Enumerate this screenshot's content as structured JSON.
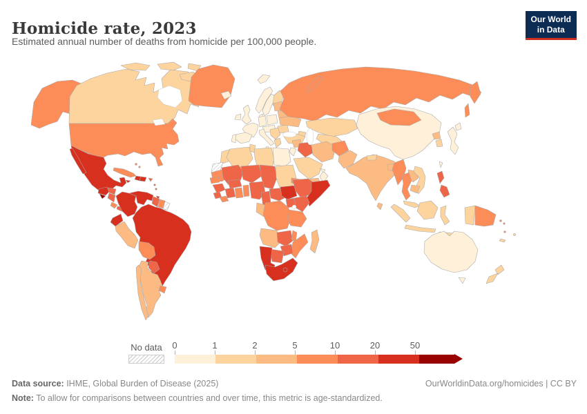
{
  "header": {
    "title": "Homicide rate, 2023",
    "subtitle": "Estimated annual number of deaths from homicide per 100,000 people."
  },
  "logo": {
    "line1": "Our World",
    "line2": "in Data",
    "bg_color": "#0d2c54",
    "accent_color": "#cf2e1c"
  },
  "legend": {
    "no_data_label": "No data",
    "tick_labels": [
      "0",
      "1",
      "2",
      "5",
      "10",
      "20",
      "50"
    ],
    "bins": [
      "0-1",
      "1-2",
      "2-5",
      "5-10",
      "10-20",
      "20-50",
      "50+"
    ],
    "bin_colors": [
      "#fef0d9",
      "#fdd49e",
      "#fdbb84",
      "#fc8d59",
      "#ef6548",
      "#d7301f",
      "#990000"
    ],
    "no_data_pattern": "diagonal-hatch"
  },
  "footer": {
    "source_label": "Data source:",
    "source_text": " IHME, Global Burden of Disease (2025)",
    "attribution": "OurWorldinData.org/homicides | CC BY",
    "note_label": "Note:",
    "note_text": " To allow for comparisons between countries and over time, this metric is age-standardized."
  },
  "chart_data": {
    "type": "choropleth",
    "title": "Homicide rate, 2023",
    "unit": "deaths from homicide per 100,000 people",
    "year": "2023",
    "legend_bins": [
      "0-1",
      "1-2",
      "2-5",
      "5-10",
      "10-20",
      "20-50",
      "50+"
    ],
    "countries": {
      "greenland": {
        "name": "Greenland",
        "bin": "5-10"
      },
      "canada": {
        "name": "Canada",
        "bin": "1-2"
      },
      "usa": {
        "name": "United States",
        "bin": "5-10"
      },
      "mexico": {
        "name": "Mexico",
        "bin": "20-50"
      },
      "guatemala": {
        "name": "Guatemala",
        "bin": "20-50"
      },
      "el_salvador": {
        "name": "El Salvador",
        "bin": "50+"
      },
      "honduras": {
        "name": "Honduras",
        "bin": "10-20"
      },
      "nicaragua": {
        "name": "Nicaragua",
        "bin": "10-20"
      },
      "costa_rica": {
        "name": "Costa Rica",
        "bin": "5-10"
      },
      "panama": {
        "name": "Panama",
        "bin": "10-20"
      },
      "cuba": {
        "name": "Cuba",
        "bin": "5-10"
      },
      "bahamas": {
        "name": "Bahamas",
        "bin": "5-10"
      },
      "jamaica": {
        "name": "Jamaica",
        "bin": "20-50"
      },
      "haiti": {
        "name": "Haiti",
        "bin": "20-50"
      },
      "dominican_republic": {
        "name": "Dominican Republic",
        "bin": "20-50"
      },
      "puerto_rico": {
        "name": "Puerto Rico",
        "bin": "10-20"
      },
      "lesser_antilles": {
        "name": "Lesser Antilles",
        "bin": "10-20"
      },
      "trinidad_and_tobago": {
        "name": "Trinidad and Tobago",
        "bin": "20-50"
      },
      "colombia": {
        "name": "Colombia",
        "bin": "20-50"
      },
      "venezuela": {
        "name": "Venezuela",
        "bin": "20-50"
      },
      "guyana": {
        "name": "Guyana",
        "bin": "10-20"
      },
      "suriname": {
        "name": "Suriname",
        "bin": "5-10"
      },
      "french_guiana": {
        "name": "French Guiana",
        "bin": "no-data"
      },
      "ecuador": {
        "name": "Ecuador",
        "bin": "20-50"
      },
      "peru": {
        "name": "Peru",
        "bin": "2-5"
      },
      "brazil": {
        "name": "Brazil",
        "bin": "20-50"
      },
      "bolivia": {
        "name": "Bolivia",
        "bin": "5-10"
      },
      "paraguay": {
        "name": "Paraguay",
        "bin": "10-20"
      },
      "uruguay": {
        "name": "Uruguay",
        "bin": "5-10"
      },
      "argentina": {
        "name": "Argentina",
        "bin": "2-5"
      },
      "chile": {
        "name": "Chile",
        "bin": "2-5"
      },
      "iceland": {
        "name": "Iceland",
        "bin": "0-1"
      },
      "uk": {
        "name": "United Kingdom",
        "bin": "0-1"
      },
      "ireland": {
        "name": "Ireland",
        "bin": "0-1"
      },
      "norway": {
        "name": "Norway",
        "bin": "0-1"
      },
      "sweden": {
        "name": "Sweden",
        "bin": "0-1"
      },
      "finland": {
        "name": "Finland",
        "bin": "1-2"
      },
      "denmark": {
        "name": "Denmark",
        "bin": "0-1"
      },
      "germany": {
        "name": "Germany",
        "bin": "0-1"
      },
      "france": {
        "name": "France",
        "bin": "0-1"
      },
      "spain": {
        "name": "Spain",
        "bin": "0-1"
      },
      "portugal": {
        "name": "Portugal",
        "bin": "0-1"
      },
      "italy": {
        "name": "Italy",
        "bin": "0-1"
      },
      "central_europe": {
        "name": "Central Europe",
        "bin": "0-1"
      },
      "poland": {
        "name": "Poland",
        "bin": "0-1"
      },
      "balkans": {
        "name": "Balkans",
        "bin": "1-2"
      },
      "greece": {
        "name": "Greece",
        "bin": "1-2"
      },
      "romania": {
        "name": "Romania",
        "bin": "1-2"
      },
      "ukraine": {
        "name": "Ukraine",
        "bin": "2-5"
      },
      "belarus": {
        "name": "Belarus",
        "bin": "2-5"
      },
      "baltics": {
        "name": "Baltic states",
        "bin": "2-5"
      },
      "turkey": {
        "name": "Turkey",
        "bin": "1-2"
      },
      "caucasus": {
        "name": "Caucasus",
        "bin": "1-2"
      },
      "russia": {
        "name": "Russia",
        "bin": "5-10"
      },
      "kazakhstan": {
        "name": "Kazakhstan",
        "bin": "1-2"
      },
      "central_asia": {
        "name": "Central Asia",
        "bin": "1-2"
      },
      "syria": {
        "name": "Syria",
        "bin": "2-5"
      },
      "jordan_israel": {
        "name": "Israel/Jordan",
        "bin": "0-1"
      },
      "iraq": {
        "name": "Iraq",
        "bin": "10-20"
      },
      "iran": {
        "name": "Iran",
        "bin": "2-5"
      },
      "saudi_arabia": {
        "name": "Saudi Arabia",
        "bin": "1-2"
      },
      "yemen": {
        "name": "Yemen",
        "bin": "2-5"
      },
      "oman": {
        "name": "Oman",
        "bin": "0-1"
      },
      "uae": {
        "name": "United Arab Emirates",
        "bin": "0-1"
      },
      "afghanistan": {
        "name": "Afghanistan",
        "bin": "5-10"
      },
      "pakistan": {
        "name": "Pakistan",
        "bin": "2-5"
      },
      "india": {
        "name": "India",
        "bin": "2-5"
      },
      "nepal": {
        "name": "Nepal",
        "bin": "1-2"
      },
      "bangladesh": {
        "name": "Bangladesh",
        "bin": "2-5"
      },
      "sri_lanka": {
        "name": "Sri Lanka",
        "bin": "2-5"
      },
      "china": {
        "name": "China",
        "bin": "0-1"
      },
      "mongolia": {
        "name": "Mongolia",
        "bin": "5-10"
      },
      "north_korea": {
        "name": "North Korea",
        "bin": "2-5"
      },
      "south_korea": {
        "name": "South Korea",
        "bin": "1-2"
      },
      "japan": {
        "name": "Japan",
        "bin": "0-1"
      },
      "taiwan": {
        "name": "Taiwan",
        "bin": "0-1"
      },
      "myanmar": {
        "name": "Myanmar",
        "bin": "5-10"
      },
      "thailand": {
        "name": "Thailand",
        "bin": "5-10"
      },
      "laos": {
        "name": "Laos",
        "bin": "2-5"
      },
      "vietnam": {
        "name": "Vietnam",
        "bin": "1-2"
      },
      "cambodia": {
        "name": "Cambodia",
        "bin": "2-5"
      },
      "malaysia": {
        "name": "Malaysia",
        "bin": "1-2"
      },
      "indonesia": {
        "name": "Indonesia",
        "bin": "1-2"
      },
      "philippines": {
        "name": "Philippines",
        "bin": "10-20"
      },
      "papua_new_guinea": {
        "name": "Papua New Guinea",
        "bin": "5-10"
      },
      "solomon_islands": {
        "name": "Solomon Islands",
        "bin": "5-10"
      },
      "vanuatu": {
        "name": "Vanuatu",
        "bin": "5-10"
      },
      "fiji": {
        "name": "Fiji",
        "bin": "1-2"
      },
      "new_caledonia": {
        "name": "New Caledonia",
        "bin": "1-2"
      },
      "australia": {
        "name": "Australia",
        "bin": "0-1"
      },
      "new_zealand": {
        "name": "New Zealand",
        "bin": "1-2"
      },
      "morocco": {
        "name": "Morocco",
        "bin": "1-2"
      },
      "western_sahara": {
        "name": "Western Sahara",
        "bin": "no-data"
      },
      "algeria": {
        "name": "Algeria",
        "bin": "1-2"
      },
      "tunisia": {
        "name": "Tunisia",
        "bin": "1-2"
      },
      "libya": {
        "name": "Libya",
        "bin": "1-2"
      },
      "egypt": {
        "name": "Egypt",
        "bin": "0-1"
      },
      "mauritania": {
        "name": "Mauritania",
        "bin": "5-10"
      },
      "mali": {
        "name": "Mali",
        "bin": "10-20"
      },
      "niger": {
        "name": "Niger",
        "bin": "10-20"
      },
      "chad": {
        "name": "Chad",
        "bin": "10-20"
      },
      "sudan": {
        "name": "Sudan",
        "bin": "1-2"
      },
      "south_sudan": {
        "name": "South Sudan",
        "bin": "20-50"
      },
      "eritrea": {
        "name": "Eritrea",
        "bin": "5-10"
      },
      "senegal": {
        "name": "Senegal",
        "bin": "5-10"
      },
      "guinea": {
        "name": "Guinea",
        "bin": "10-20"
      },
      "sierra_leone": {
        "name": "Sierra Leone",
        "bin": "10-20"
      },
      "liberia": {
        "name": "Liberia",
        "bin": "5-10"
      },
      "ivory_coast": {
        "name": "Cote d'Ivoire",
        "bin": "10-20"
      },
      "ghana": {
        "name": "Ghana",
        "bin": "5-10"
      },
      "burkina_faso": {
        "name": "Burkina Faso",
        "bin": "10-20"
      },
      "togo_benin": {
        "name": "Togo/Benin",
        "bin": "5-10"
      },
      "nigeria": {
        "name": "Nigeria",
        "bin": "10-20"
      },
      "cameroon": {
        "name": "Cameroon",
        "bin": "10-20"
      },
      "central_african_republic": {
        "name": "Central African Republic",
        "bin": "10-20"
      },
      "ethiopia": {
        "name": "Ethiopia",
        "bin": "10-20"
      },
      "somalia": {
        "name": "Somalia",
        "bin": "20-50"
      },
      "kenya": {
        "name": "Kenya",
        "bin": "10-20"
      },
      "uganda": {
        "name": "Uganda",
        "bin": "10-20"
      },
      "drc": {
        "name": "Democratic Republic of Congo",
        "bin": "5-10"
      },
      "gabon_congo": {
        "name": "Gabon/Congo",
        "bin": "2-5"
      },
      "tanzania": {
        "name": "Tanzania",
        "bin": "5-10"
      },
      "angola": {
        "name": "Angola",
        "bin": "2-5"
      },
      "zambia": {
        "name": "Zambia",
        "bin": "10-20"
      },
      "malawi": {
        "name": "Malawi",
        "bin": "5-10"
      },
      "mozambique": {
        "name": "Mozambique",
        "bin": "5-10"
      },
      "zimbabwe": {
        "name": "Zimbabwe",
        "bin": "10-20"
      },
      "botswana": {
        "name": "Botswana",
        "bin": "10-20"
      },
      "namibia": {
        "name": "Namibia",
        "bin": "20-50"
      },
      "south_africa": {
        "name": "South Africa",
        "bin": "20-50"
      },
      "lesotho": {
        "name": "Lesotho",
        "bin": "20-50"
      },
      "madagascar": {
        "name": "Madagascar",
        "bin": "2-5"
      }
    }
  }
}
